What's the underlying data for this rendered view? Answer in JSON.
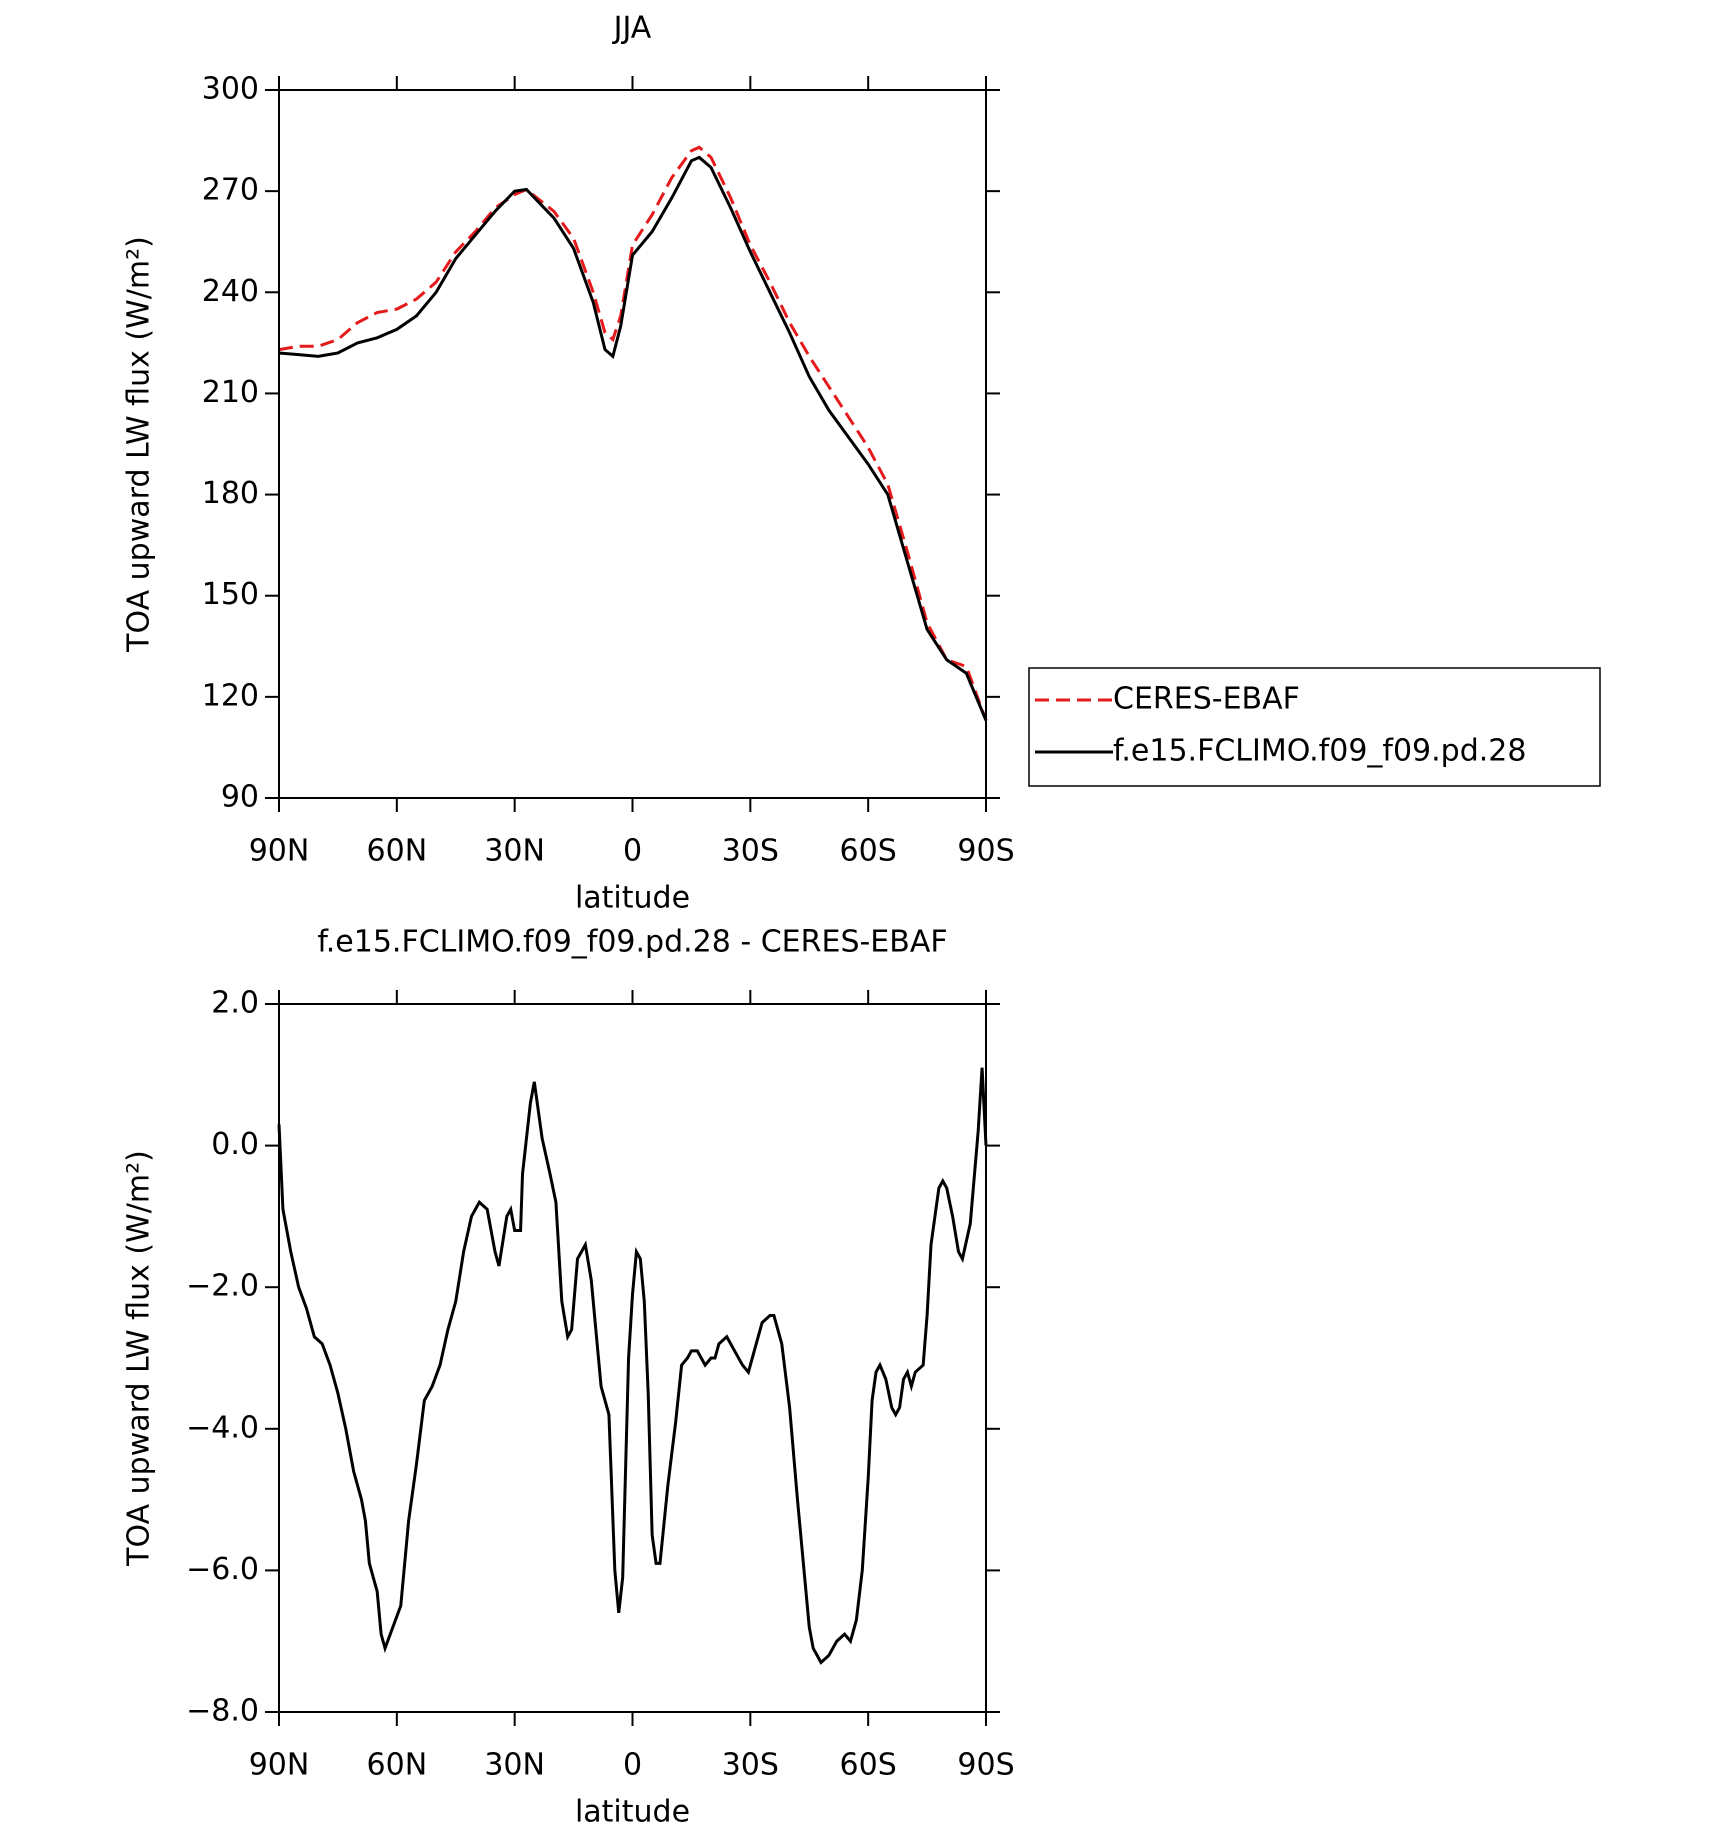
{
  "chart_data": [
    {
      "type": "line",
      "title": "JJA",
      "xlabel": "latitude",
      "ylabel": "TOA upward LW flux (W/m²)",
      "xlim": [
        90,
        -90
      ],
      "xticks": [
        {
          "value": 90,
          "label": "90N"
        },
        {
          "value": 60,
          "label": "60N"
        },
        {
          "value": 30,
          "label": "30N"
        },
        0,
        {
          "value": -30,
          "label": "30S"
        },
        {
          "value": -60,
          "label": "60S"
        },
        {
          "value": -90,
          "label": "90S"
        }
      ],
      "ylim": [
        90,
        300
      ],
      "yticks": [
        90,
        120,
        150,
        180,
        210,
        240,
        270,
        300
      ],
      "legend": "right",
      "x": [
        90,
        85,
        80,
        75,
        70,
        65,
        60,
        55,
        50,
        45,
        40,
        35,
        30,
        27,
        20,
        15,
        10,
        7,
        5,
        3,
        0,
        -5,
        -10,
        -15,
        -17,
        -20,
        -25,
        -30,
        -35,
        -40,
        -45,
        -50,
        -55,
        -60,
        -65,
        -70,
        -75,
        -80,
        -85,
        -90
      ],
      "series": [
        {
          "name": "CERES-EBAF",
          "color": "#e41a1c",
          "style": "dashed",
          "values": [
            223,
            224,
            224,
            226,
            231,
            234,
            235,
            238,
            243,
            252,
            258,
            265,
            269,
            270.5,
            264,
            256,
            240,
            228,
            226,
            233,
            254,
            263,
            274,
            282,
            283,
            280,
            268,
            254,
            243,
            231,
            221,
            212,
            203,
            194,
            183,
            163,
            142,
            131,
            129,
            113
          ]
        },
        {
          "name": "f.e15.FCLIMO.f09_f09.pd.28",
          "color": "#000000",
          "style": "solid",
          "values": [
            222,
            221.5,
            221,
            222,
            225,
            226.5,
            229,
            233,
            240,
            250,
            257,
            264,
            270,
            270.5,
            262,
            253,
            237,
            223,
            221,
            230,
            251,
            258,
            268,
            279,
            280,
            277,
            265,
            252,
            240,
            228,
            215,
            205,
            197,
            189,
            180,
            160,
            140,
            131,
            127,
            113
          ]
        }
      ]
    },
    {
      "type": "line",
      "title": "f.e15.FCLIMO.f09_f09.pd.28 - CERES-EBAF",
      "xlabel": "latitude",
      "ylabel": "TOA upward LW flux (W/m²)",
      "xlim": [
        90,
        -90
      ],
      "xticks": [
        {
          "value": 90,
          "label": "90N"
        },
        {
          "value": 60,
          "label": "60N"
        },
        {
          "value": 30,
          "label": "30N"
        },
        0,
        {
          "value": -30,
          "label": "30S"
        },
        {
          "value": -60,
          "label": "60S"
        },
        {
          "value": -90,
          "label": "90S"
        }
      ],
      "ylim": [
        -8,
        2
      ],
      "yticks": [
        {
          "value": -8,
          "label": "−8.0"
        },
        {
          "value": -6,
          "label": "−6.0"
        },
        {
          "value": -4,
          "label": "−4.0"
        },
        {
          "value": -2,
          "label": "−2.0"
        },
        {
          "value": 0,
          "label": "0.0"
        },
        {
          "value": 2,
          "label": "2.0"
        }
      ],
      "x": [
        90,
        89,
        87,
        85,
        83,
        81,
        79,
        77,
        75,
        73,
        71,
        69,
        68,
        67,
        65,
        64,
        63,
        61,
        59,
        57,
        55,
        53,
        51,
        49,
        47,
        45,
        43,
        41,
        39,
        37,
        35,
        34,
        32,
        31,
        30,
        28.5,
        28,
        26,
        25,
        23,
        21,
        19.5,
        18,
        16.5,
        15.5,
        14,
        12,
        10.5,
        9,
        8,
        6,
        4.5,
        3.5,
        2.5,
        1,
        0,
        -1,
        -2,
        -3,
        -4,
        -5,
        -6,
        -7,
        -9,
        -11,
        -12.5,
        -14,
        -15,
        -16.5,
        -17.5,
        -18.5,
        -20,
        -21,
        -22,
        -24,
        -26,
        -28,
        -29.5,
        -31,
        -33,
        -35,
        -36,
        -38,
        -40,
        -42,
        -44,
        -45,
        -46,
        -48,
        -50,
        -52,
        -54,
        -55.5,
        -57,
        -58.5,
        -60,
        -61,
        -62,
        -63,
        -64.5,
        -66,
        -67,
        -68,
        -69,
        -70,
        -71,
        -72,
        -74,
        -75,
        -76,
        -78,
        -79,
        -80,
        -81.5,
        -83,
        -84,
        -86,
        -88,
        -89,
        -90
      ],
      "color": "#000000",
      "values": [
        0.3,
        -0.9,
        -1.5,
        -2.0,
        -2.3,
        -2.7,
        -2.8,
        -3.1,
        -3.5,
        -4.0,
        -4.6,
        -5.0,
        -5.3,
        -5.9,
        -6.3,
        -6.9,
        -7.1,
        -6.8,
        -6.5,
        -5.3,
        -4.5,
        -3.6,
        -3.4,
        -3.1,
        -2.6,
        -2.2,
        -1.5,
        -1.0,
        -0.8,
        -0.9,
        -1.5,
        -1.7,
        -1.0,
        -0.9,
        -1.2,
        -1.2,
        -0.4,
        0.6,
        0.9,
        0.1,
        -0.4,
        -0.8,
        -2.2,
        -2.7,
        -2.6,
        -1.6,
        -1.4,
        -1.9,
        -2.8,
        -3.4,
        -3.8,
        -6.0,
        -6.6,
        -6.1,
        -3.0,
        -2.1,
        -1.5,
        -1.6,
        -2.2,
        -3.5,
        -5.5,
        -5.9,
        -5.9,
        -4.8,
        -3.9,
        -3.1,
        -3.0,
        -2.9,
        -2.9,
        -3.0,
        -3.1,
        -3.0,
        -3.0,
        -2.8,
        -2.7,
        -2.9,
        -3.1,
        -3.2,
        -2.9,
        -2.5,
        -2.4,
        -2.4,
        -2.8,
        -3.7,
        -5.0,
        -6.2,
        -6.8,
        -7.1,
        -7.3,
        -7.2,
        -7.0,
        -6.9,
        -7.0,
        -6.7,
        -6.0,
        -4.7,
        -3.6,
        -3.2,
        -3.1,
        -3.3,
        -3.7,
        -3.8,
        -3.7,
        -3.3,
        -3.2,
        -3.4,
        -3.2,
        -3.1,
        -2.4,
        -1.4,
        -0.6,
        -0.5,
        -0.6,
        -1.0,
        -1.5,
        -1.6,
        -1.1,
        0.2,
        1.1,
        0.0
      ]
    }
  ]
}
